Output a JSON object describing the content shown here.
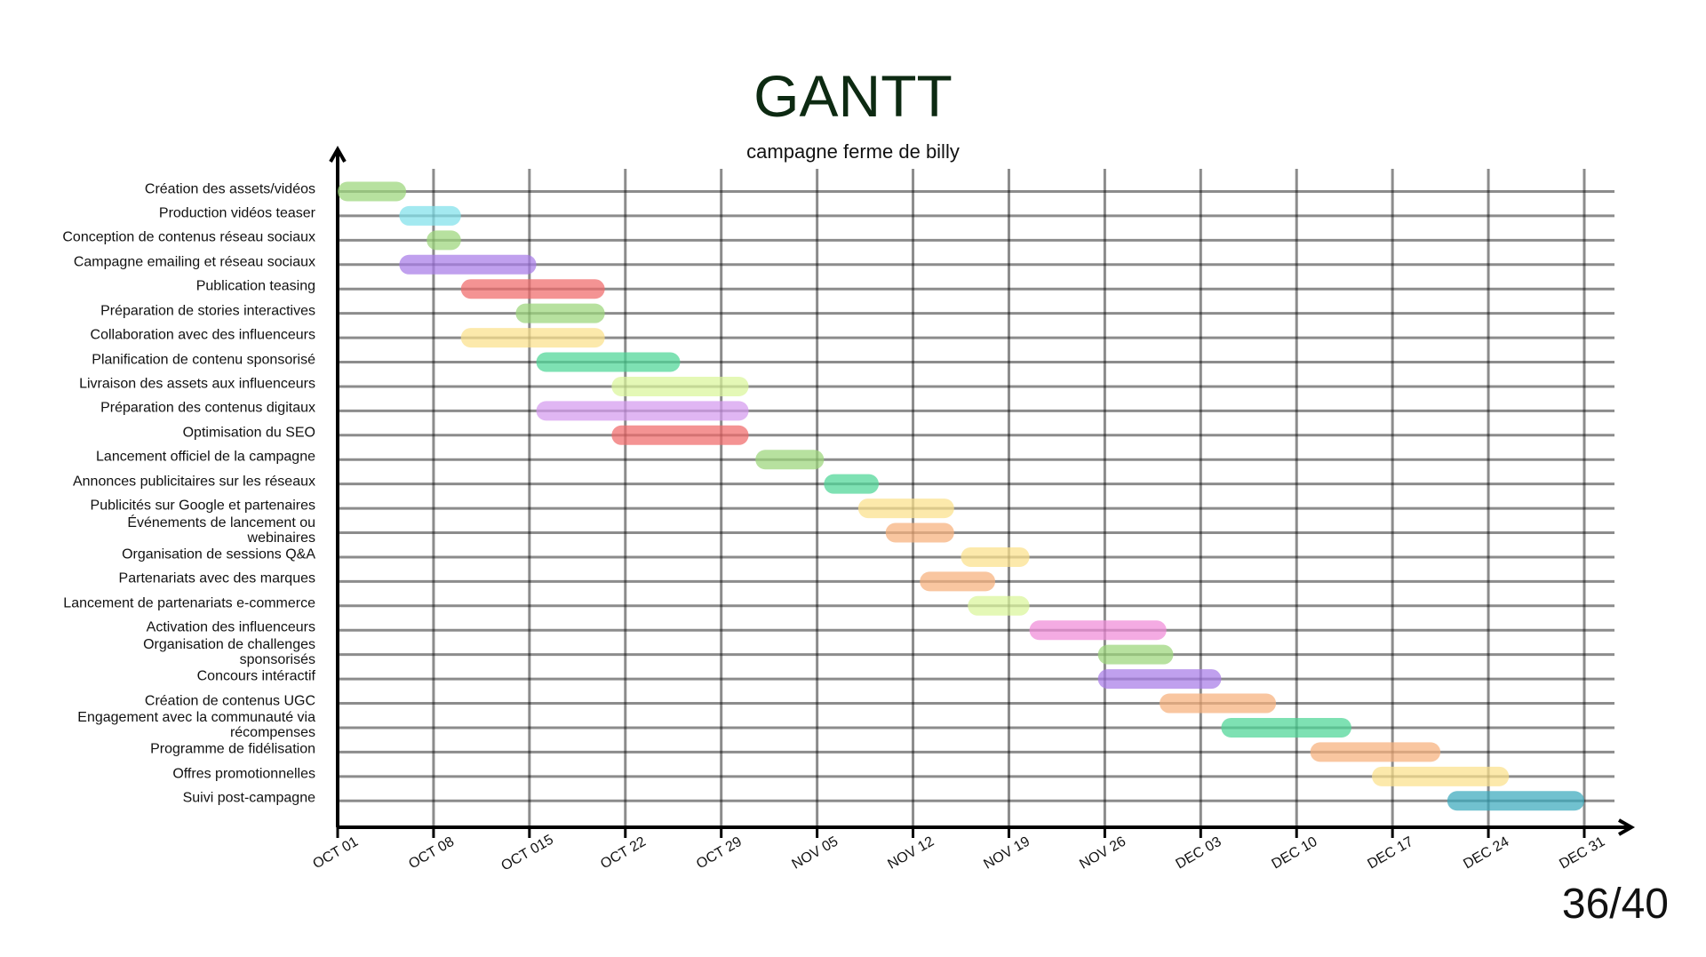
{
  "chart_data": {
    "type": "gantt",
    "title": "GANTT",
    "subtitle": "campagne ferme de billy",
    "xlim": [
      0,
      91
    ],
    "xticks": [
      {
        "value": 0,
        "label": "OCT 01"
      },
      {
        "value": 7,
        "label": "OCT 08"
      },
      {
        "value": 14,
        "label": "OCT 015"
      },
      {
        "value": 21,
        "label": "OCT 22"
      },
      {
        "value": 28,
        "label": "OCT 29"
      },
      {
        "value": 35,
        "label": "NOV 05"
      },
      {
        "value": 42,
        "label": "NOV 12"
      },
      {
        "value": 49,
        "label": "NOV 19"
      },
      {
        "value": 56,
        "label": "NOV 26"
      },
      {
        "value": 63,
        "label": "DEC 03"
      },
      {
        "value": 70,
        "label": "DEC 10"
      },
      {
        "value": 77,
        "label": "DEC 17"
      },
      {
        "value": 84,
        "label": "DEC 24"
      },
      {
        "value": 91,
        "label": "DEC 31"
      }
    ],
    "grid": true,
    "tasks": [
      {
        "name": "Création des assets/vidéos",
        "start": 0,
        "end": 5,
        "color": "#9bd67a"
      },
      {
        "name": "Production vidéos teaser",
        "start": 4.5,
        "end": 9,
        "color": "#7fe0ea"
      },
      {
        "name": "Conception de contenus réseau sociaux",
        "start": 6.5,
        "end": 9,
        "color": "#9bd67a"
      },
      {
        "name": "Campagne emailing et réseau sociaux",
        "start": 4.5,
        "end": 14.5,
        "color": "#a77be8"
      },
      {
        "name": "Publication teasing",
        "start": 9,
        "end": 19.5,
        "color": "#f06a6a"
      },
      {
        "name": "Préparation de stories interactives",
        "start": 13,
        "end": 19.5,
        "color": "#9bd67a"
      },
      {
        "name": "Collaboration avec des influenceurs",
        "start": 9,
        "end": 19.5,
        "color": "#fbe08a"
      },
      {
        "name": "Planification de contenu sponsorisé",
        "start": 14.5,
        "end": 25,
        "color": "#4cd696"
      },
      {
        "name": "Livraison des assets aux influenceurs",
        "start": 20,
        "end": 30,
        "color": "#d9f59a"
      },
      {
        "name": "Préparation des contenus digitaux",
        "start": 14.5,
        "end": 30,
        "color": "#d49aef"
      },
      {
        "name": "Optimisation du SEO",
        "start": 20,
        "end": 30,
        "color": "#f06a6a"
      },
      {
        "name": "Lancement officiel de la campagne",
        "start": 30.5,
        "end": 35.5,
        "color": "#9bd67a"
      },
      {
        "name": "Annonces publicitaires sur les réseaux",
        "start": 35.5,
        "end": 39.5,
        "color": "#4cd696"
      },
      {
        "name": "Publicités sur Google et partenaires",
        "start": 38,
        "end": 45,
        "color": "#fbe08a"
      },
      {
        "name": "Événements de lancement ou\nwebinaires",
        "start": 40,
        "end": 45,
        "color": "#f7b07c"
      },
      {
        "name": "Organisation de sessions Q&A",
        "start": 45.5,
        "end": 50.5,
        "color": "#fbe08a"
      },
      {
        "name": "Partenariats avec des marques",
        "start": 42.5,
        "end": 48,
        "color": "#f7b07c"
      },
      {
        "name": "Lancement de partenariats e-commerce",
        "start": 46,
        "end": 50.5,
        "color": "#d9f59a"
      },
      {
        "name": "Activation des influenceurs",
        "start": 50.5,
        "end": 60.5,
        "color": "#f08ad8"
      },
      {
        "name": "Organisation de challenges\nsponsorisés",
        "start": 55.5,
        "end": 61,
        "color": "#9bd67a"
      },
      {
        "name": "Concours intéractif",
        "start": 55.5,
        "end": 64.5,
        "color": "#a77be8"
      },
      {
        "name": "Création de contenus UGC",
        "start": 60,
        "end": 68.5,
        "color": "#f7b07c"
      },
      {
        "name": "Engagement avec la communauté via\nrécompenses",
        "start": 64.5,
        "end": 74,
        "color": "#4cd696"
      },
      {
        "name": "Programme de fidélisation",
        "start": 71,
        "end": 80.5,
        "color": "#f7b07c"
      },
      {
        "name": "Offres promotionnelles",
        "start": 75.5,
        "end": 85.5,
        "color": "#fbe08a"
      },
      {
        "name": "Suivi post-campagne",
        "start": 81,
        "end": 91,
        "color": "#3aa9bd"
      }
    ]
  },
  "page_number": "36/40"
}
